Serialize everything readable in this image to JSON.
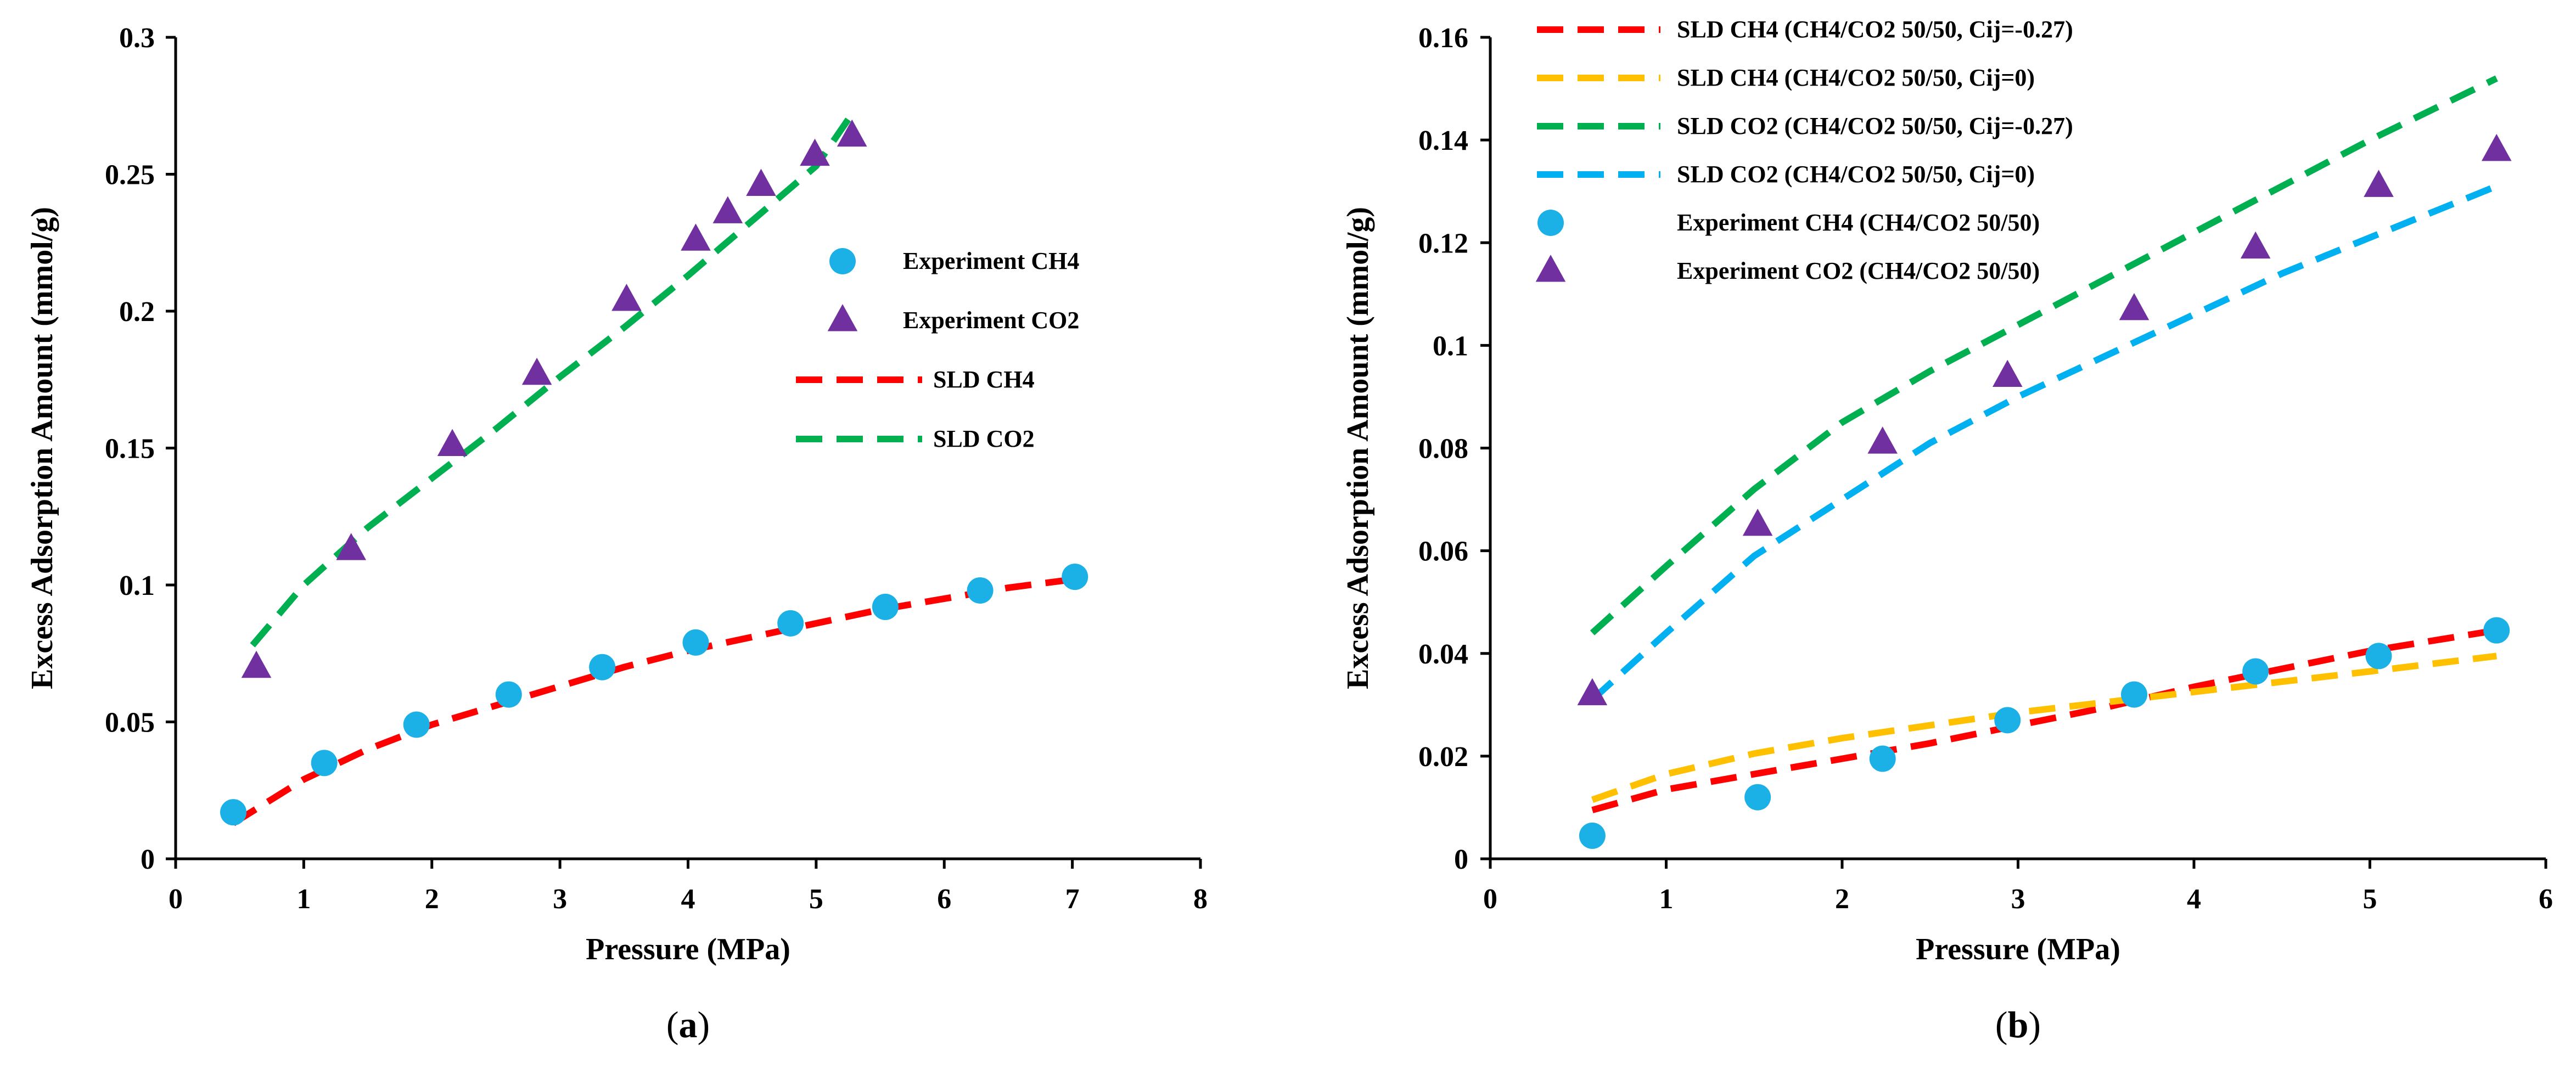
{
  "chart_data": [
    {
      "type": "scatter",
      "panel_label": "(",
      "caption_letter": "a",
      "caption_close": ")",
      "xlabel": "Pressure (MPa)",
      "ylabel": "Excess Adsorption Amount (mmol/g)",
      "xlim": [
        0,
        8
      ],
      "ylim": [
        0,
        0.3
      ],
      "xticks": [
        "0",
        "1",
        "2",
        "3",
        "4",
        "5",
        "6",
        "7",
        "8"
      ],
      "yticks": [
        "0",
        "0.05",
        "0.1",
        "0.15",
        "0.2",
        "0.25",
        "0.3"
      ],
      "legend_position": "right-middle",
      "series": [
        {
          "name": "Experiment CH4",
          "kind": "points",
          "marker": "circle",
          "color": "#1bb0e6",
          "x": [
            0.45,
            1.16,
            1.88,
            2.6,
            3.33,
            4.06,
            4.8,
            5.54,
            6.28,
            7.02
          ],
          "y": [
            0.017,
            0.035,
            0.049,
            0.06,
            0.07,
            0.079,
            0.086,
            0.092,
            0.098,
            0.103
          ]
        },
        {
          "name": "Experiment CO2",
          "kind": "points",
          "marker": "triangle",
          "color": "#7030a0",
          "x": [
            0.63,
            1.37,
            2.16,
            2.82,
            3.52,
            4.06,
            4.31,
            4.57,
            4.99,
            5.28
          ],
          "y": [
            0.07,
            0.113,
            0.151,
            0.177,
            0.204,
            0.226,
            0.236,
            0.246,
            0.257,
            0.264
          ]
        },
        {
          "name": "SLD CH4",
          "kind": "line",
          "dash": true,
          "color": "#ff0000",
          "x": [
            0.45,
            1.0,
            1.5,
            2.0,
            2.5,
            3.0,
            3.5,
            4.0,
            4.5,
            5.0,
            5.5,
            6.0,
            6.5,
            7.0
          ],
          "y": [
            0.013,
            0.029,
            0.04,
            0.049,
            0.056,
            0.063,
            0.07,
            0.076,
            0.081,
            0.086,
            0.091,
            0.095,
            0.099,
            0.102
          ]
        },
        {
          "name": "SLD CO2",
          "kind": "line",
          "dash": true,
          "color": "#00b050",
          "x": [
            0.6,
            1.0,
            1.5,
            2.0,
            2.5,
            3.0,
            3.5,
            4.0,
            4.5,
            5.0,
            5.25
          ],
          "y": [
            0.078,
            0.1,
            0.121,
            0.139,
            0.157,
            0.176,
            0.194,
            0.213,
            0.233,
            0.253,
            0.27
          ]
        }
      ]
    },
    {
      "type": "scatter",
      "panel_label": "(",
      "caption_letter": "b",
      "caption_close": ")",
      "xlabel": "Pressure (MPa)",
      "ylabel": "Excess Adsorption Amount (mmol/g)",
      "xlim": [
        0,
        6
      ],
      "ylim": [
        0,
        0.16
      ],
      "xticks": [
        "0",
        "1",
        "2",
        "3",
        "4",
        "5",
        "6"
      ],
      "yticks": [
        "0",
        "0.02",
        "0.04",
        "0.06",
        "0.08",
        "0.1",
        "0.12",
        "0.14",
        "0.16"
      ],
      "legend_position": "top-left",
      "series": [
        {
          "name": "SLD CH4 (CH4/CO2 50/50, Cij=-0.27)",
          "kind": "line",
          "dash": true,
          "color": "#ff0000",
          "x": [
            0.58,
            1.0,
            1.5,
            2.0,
            2.5,
            3.0,
            3.5,
            4.0,
            4.5,
            5.0,
            5.72
          ],
          "y": [
            0.0095,
            0.0135,
            0.0165,
            0.0195,
            0.0225,
            0.026,
            0.0295,
            0.0335,
            0.037,
            0.0405,
            0.0445
          ]
        },
        {
          "name": "SLD CH4 (CH4/CO2 50/50, Cij=0)",
          "kind": "line",
          "dash": true,
          "color": "#ffc000",
          "x": [
            0.58,
            1.0,
            1.5,
            2.0,
            2.5,
            3.0,
            3.5,
            4.0,
            4.5,
            5.0,
            5.72
          ],
          "y": [
            0.0115,
            0.0165,
            0.0205,
            0.0235,
            0.026,
            0.0285,
            0.0305,
            0.0325,
            0.0345,
            0.0365,
            0.0395
          ]
        },
        {
          "name": "SLD CO2 (CH4/CO2 50/50, Cij=-0.27)",
          "kind": "line",
          "dash": true,
          "color": "#00b050",
          "x": [
            0.58,
            1.0,
            1.5,
            2.0,
            2.5,
            3.0,
            3.5,
            4.0,
            4.5,
            5.0,
            5.72
          ],
          "y": [
            0.044,
            0.057,
            0.072,
            0.085,
            0.095,
            0.104,
            0.113,
            0.122,
            0.131,
            0.14,
            0.152
          ]
        },
        {
          "name": "SLD CO2 (CH4/CO2 50/50, Cij=0)",
          "kind": "line",
          "dash": true,
          "color": "#00b0f0",
          "x": [
            0.58,
            1.0,
            1.5,
            2.0,
            2.5,
            3.0,
            3.5,
            4.0,
            4.5,
            5.0,
            5.72
          ],
          "y": [
            0.031,
            0.044,
            0.059,
            0.07,
            0.081,
            0.09,
            0.098,
            0.106,
            0.114,
            0.121,
            0.131
          ]
        },
        {
          "name": "Experiment CH4 (CH4/CO2 50/50)",
          "kind": "points",
          "marker": "circle",
          "color": "#1bb0e6",
          "x": [
            0.58,
            1.52,
            2.23,
            2.94,
            3.66,
            4.35,
            5.05,
            5.72
          ],
          "y": [
            0.0045,
            0.012,
            0.0195,
            0.027,
            0.032,
            0.0365,
            0.0395,
            0.0445
          ]
        },
        {
          "name": "Experiment CO2 (CH4/CO2 50/50)",
          "kind": "points",
          "marker": "triangle",
          "color": "#7030a0",
          "x": [
            0.58,
            1.52,
            2.23,
            2.94,
            3.66,
            4.35,
            5.05,
            5.72
          ],
          "y": [
            0.032,
            0.065,
            0.081,
            0.094,
            0.107,
            0.119,
            0.131,
            0.138
          ]
        }
      ]
    }
  ]
}
